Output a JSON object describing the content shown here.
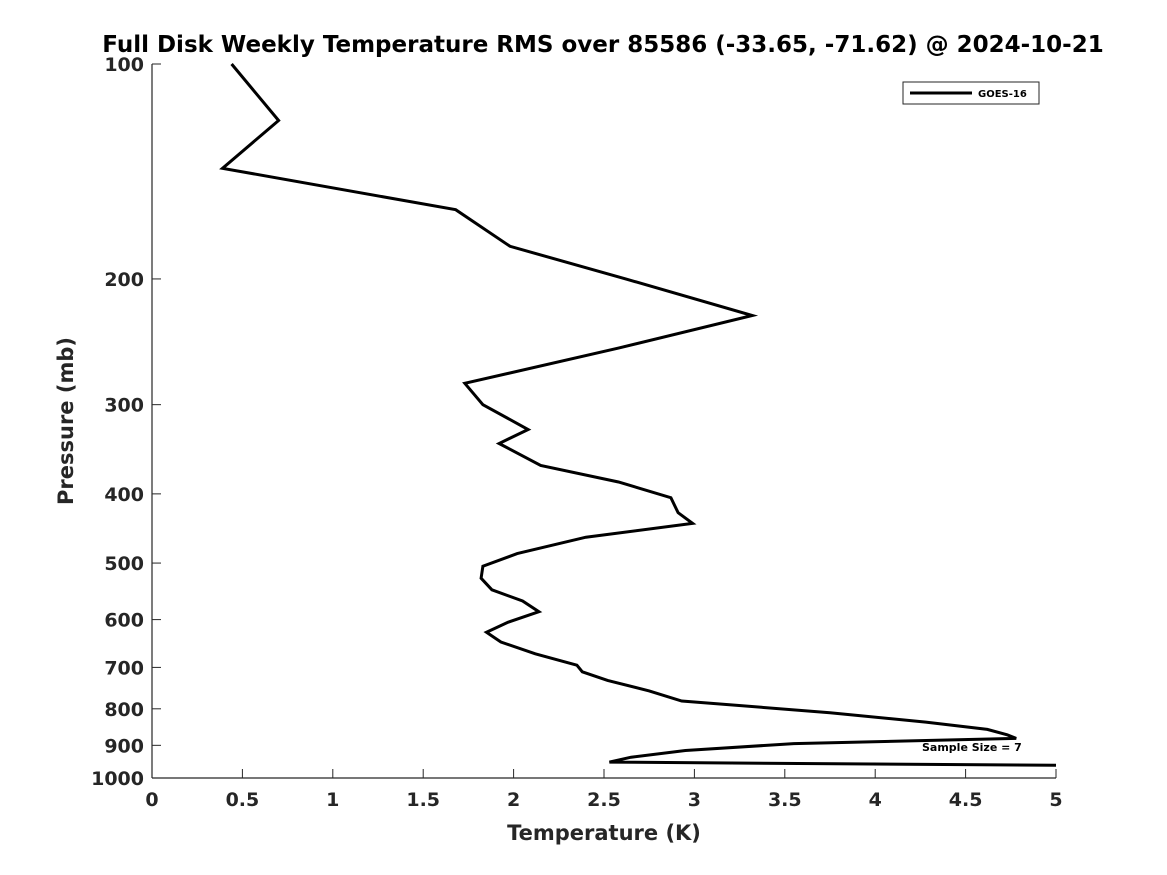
{
  "chart_data": {
    "type": "line",
    "title": "Full Disk Weekly Temperature RMS over 85586 (-33.65, -71.62) @ 2024-10-21",
    "xlabel": "Temperature (K)",
    "ylabel": "Pressure (mb)",
    "xlim": [
      0,
      5
    ],
    "ylim": [
      100,
      1000
    ],
    "y_scale": "log",
    "y_reversed": true,
    "x_ticks": [
      0,
      0.5,
      1,
      1.5,
      2,
      2.5,
      3,
      3.5,
      4,
      4.5,
      5
    ],
    "x_tick_labels": [
      "0",
      "0.5",
      "1",
      "1.5",
      "2",
      "2.5",
      "3",
      "3.5",
      "4",
      "4.5",
      "5"
    ],
    "y_ticks": [
      100,
      200,
      300,
      400,
      500,
      600,
      700,
      800,
      900,
      1000
    ],
    "y_tick_labels": [
      "100",
      "200",
      "300",
      "400",
      "500",
      "600",
      "700",
      "800",
      "900",
      "1000"
    ],
    "grid": false,
    "legend_position": "top-right",
    "series": [
      {
        "name": "GOES-16",
        "color": "#000000",
        "x": [
          0.44,
          0.7,
          0.39,
          1.68,
          1.98,
          2.62,
          3.32,
          2.58,
          1.73,
          1.83,
          2.08,
          1.92,
          2.15,
          2.58,
          2.87,
          2.91,
          2.99,
          2.4,
          2.02,
          1.83,
          1.82,
          1.88,
          2.05,
          2.14,
          1.97,
          1.85,
          1.93,
          2.12,
          2.35,
          2.38,
          2.52,
          2.75,
          2.93,
          3.75,
          4.28,
          4.62,
          4.73,
          4.78,
          3.55,
          2.95,
          2.65,
          2.53,
          5.0
        ],
        "y": [
          100,
          120,
          140,
          160,
          180,
          200,
          225,
          250,
          280,
          300,
          325,
          340,
          365,
          385,
          405,
          425,
          440,
          460,
          485,
          505,
          525,
          545,
          565,
          585,
          605,
          625,
          645,
          670,
          695,
          710,
          730,
          755,
          780,
          810,
          835,
          855,
          870,
          880,
          895,
          915,
          935,
          950,
          960
        ]
      }
    ],
    "annotations": [
      {
        "text": "Sample Size = 7",
        "x": 4.79,
        "y": 900
      }
    ]
  }
}
